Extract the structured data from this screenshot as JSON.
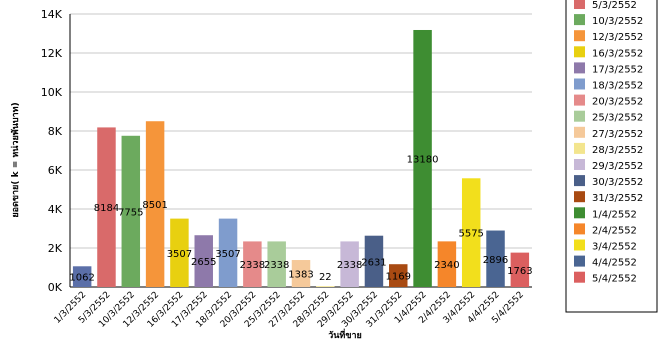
{
  "chart_data": {
    "type": "bar",
    "ylabel": "ยอดขาย( k = หน่วยพันบาท)",
    "xlabel": "วันที่ขาย",
    "yticks": [
      "0K",
      "2K",
      "4K",
      "6K",
      "8K",
      "10K",
      "12K",
      "14K"
    ],
    "ylim": [
      0,
      14000
    ],
    "grid": true,
    "legend": "right",
    "categories": [
      "1/3/2552",
      "5/3/2552",
      "10/3/2552",
      "12/3/2552",
      "16/3/2552",
      "17/3/2552",
      "18/3/2552",
      "20/3/2552",
      "25/3/2552",
      "27/3/2552",
      "28/3/2552",
      "29/3/2552",
      "30/3/2552",
      "31/3/2552",
      "1/4/2552",
      "2/4/2552",
      "3/4/2552",
      "4/4/2552",
      "5/4/2552"
    ],
    "values": [
      1062,
      8184,
      7755,
      8501,
      3507,
      2655,
      3507,
      2338,
      2338,
      1383,
      22,
      2338,
      2631,
      1169,
      13180,
      2340,
      5575,
      2896,
      1763
    ],
    "value_labels": [
      "1062",
      "8184",
      "7755",
      "8501",
      "3507",
      "2655",
      "3507",
      "2338",
      "2338",
      "1383",
      "22",
      "2338",
      "2631",
      "1169",
      "13180",
      "2340",
      "5575",
      "2896",
      "1763"
    ],
    "colors": [
      "#5b6fa8",
      "#d96a6a",
      "#6caa5e",
      "#f5953a",
      "#e8d010",
      "#8e79aa",
      "#7f9ccd",
      "#e58a8a",
      "#a9cc9a",
      "#f5c99a",
      "#f3e58e",
      "#c7b8d7",
      "#4a5f88",
      "#a84a12",
      "#3e8d32",
      "#f5862a",
      "#f2df1c",
      "#4a6592",
      "#db5f5f"
    ],
    "legend_entries": [
      "1/3/2552",
      "5/3/2552",
      "10/3/2552",
      "12/3/2552",
      "16/3/2552",
      "17/3/2552",
      "18/3/2552",
      "20/3/2552",
      "25/3/2552",
      "27/3/2552",
      "28/3/2552",
      "29/3/2552",
      "30/3/2552",
      "31/3/2552",
      "1/4/2552",
      "2/4/2552",
      "3/4/2552",
      "4/4/2552",
      "5/4/2552"
    ]
  }
}
